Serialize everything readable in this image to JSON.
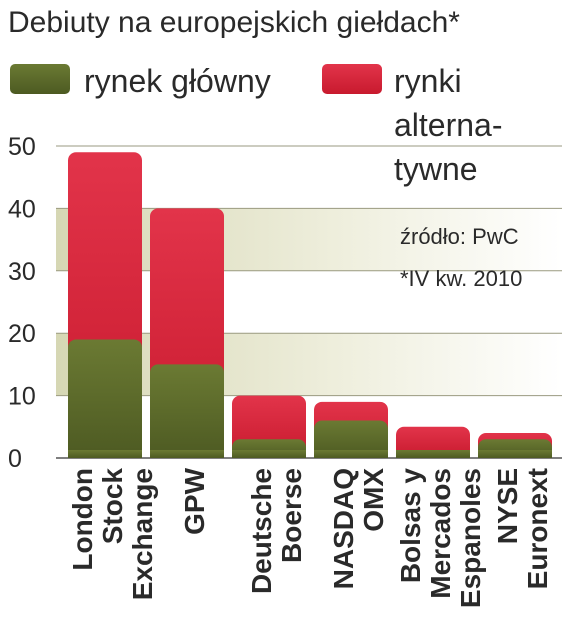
{
  "chart_data": {
    "type": "bar",
    "stacked": true,
    "title": "Debiuty na europejskich giełdach*",
    "categories": [
      [
        "London",
        "Stock",
        "Exchange"
      ],
      [
        "GPW"
      ],
      [
        "Deutsche",
        "Boerse"
      ],
      [
        "NASDAQ",
        "OMX"
      ],
      [
        "Bolsas y",
        "Mercados",
        "Espanoles"
      ],
      [
        "NYSE",
        "Euronext"
      ]
    ],
    "series": [
      {
        "name": "rynek główny",
        "values": [
          19,
          15,
          3,
          6,
          1,
          3
        ]
      },
      {
        "name_lines": [
          "rynki",
          "alterna-",
          "tywne"
        ],
        "values": [
          30,
          25,
          7,
          3,
          4,
          1
        ]
      }
    ],
    "ylim": [
      0,
      50
    ],
    "yticks": [
      0,
      10,
      20,
      30,
      40,
      50
    ],
    "grid": "banded",
    "legend": "top",
    "source": "źródło: PwC",
    "footnote": "*IV kw. 2010",
    "colors": {
      "main": "#5a6a2a",
      "alternative": "#d8223a"
    }
  }
}
